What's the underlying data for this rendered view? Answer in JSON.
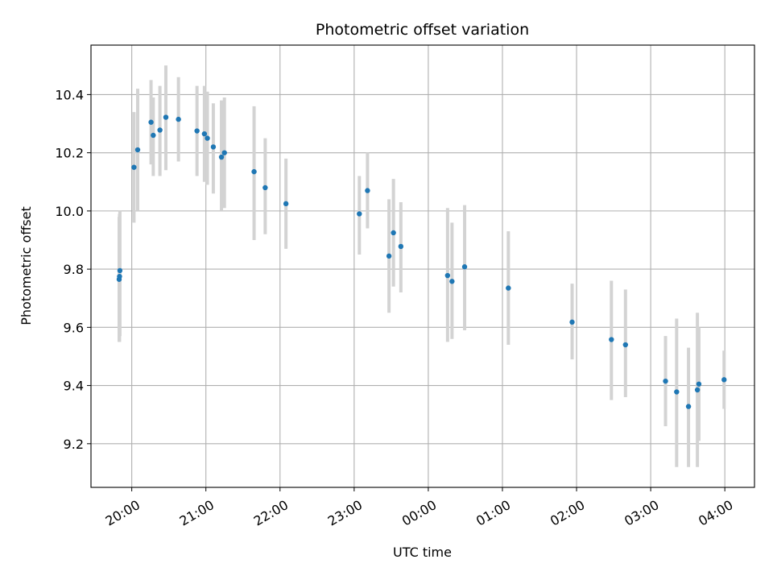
{
  "chart_data": {
    "type": "scatter",
    "title": "Photometric offset variation",
    "xlabel": "UTC time",
    "ylabel": "Photometric offset",
    "x_unit": "hours after 20:00 UTC, wrapping past midnight",
    "xlim": [
      -0.55,
      8.4
    ],
    "ylim": [
      9.05,
      10.57
    ],
    "grid": true,
    "x_ticks": [
      {
        "value": 0,
        "label": "20:00"
      },
      {
        "value": 1,
        "label": "21:00"
      },
      {
        "value": 2,
        "label": "22:00"
      },
      {
        "value": 3,
        "label": "23:00"
      },
      {
        "value": 4,
        "label": "00:00"
      },
      {
        "value": 5,
        "label": "01:00"
      },
      {
        "value": 6,
        "label": "02:00"
      },
      {
        "value": 7,
        "label": "03:00"
      },
      {
        "value": 8,
        "label": "04:00"
      }
    ],
    "y_ticks": [
      {
        "value": 9.2,
        "label": "9.2"
      },
      {
        "value": 9.4,
        "label": "9.4"
      },
      {
        "value": 9.6,
        "label": "9.6"
      },
      {
        "value": 9.8,
        "label": "9.8"
      },
      {
        "value": 10.0,
        "label": "10.0"
      },
      {
        "value": 10.2,
        "label": "10.2"
      },
      {
        "value": 10.4,
        "label": "10.4"
      }
    ],
    "marker_color": "#1f77b4",
    "errorbar_color": "#d3d3d3",
    "points": [
      {
        "x": -0.16,
        "y": 9.795,
        "lo": 9.57,
        "hi": 10.0
      },
      {
        "x": -0.165,
        "y": 9.775,
        "lo": 9.55,
        "hi": 9.99
      },
      {
        "x": -0.17,
        "y": 9.765,
        "lo": 9.55,
        "hi": 9.98
      },
      {
        "x": 0.03,
        "y": 10.15,
        "lo": 9.96,
        "hi": 10.34
      },
      {
        "x": 0.08,
        "y": 10.21,
        "lo": 10.0,
        "hi": 10.42
      },
      {
        "x": 0.26,
        "y": 10.305,
        "lo": 10.16,
        "hi": 10.45
      },
      {
        "x": 0.29,
        "y": 10.26,
        "lo": 10.12,
        "hi": 10.39
      },
      {
        "x": 0.38,
        "y": 10.278,
        "lo": 10.12,
        "hi": 10.43
      },
      {
        "x": 0.46,
        "y": 10.322,
        "lo": 10.14,
        "hi": 10.5
      },
      {
        "x": 0.63,
        "y": 10.315,
        "lo": 10.17,
        "hi": 10.46
      },
      {
        "x": 0.88,
        "y": 10.275,
        "lo": 10.12,
        "hi": 10.43
      },
      {
        "x": 0.98,
        "y": 10.265,
        "lo": 10.1,
        "hi": 10.43
      },
      {
        "x": 1.02,
        "y": 10.25,
        "lo": 10.09,
        "hi": 10.41
      },
      {
        "x": 1.1,
        "y": 10.22,
        "lo": 10.06,
        "hi": 10.37
      },
      {
        "x": 1.21,
        "y": 10.185,
        "lo": 10.0,
        "hi": 10.38
      },
      {
        "x": 1.25,
        "y": 10.2,
        "lo": 10.01,
        "hi": 10.39
      },
      {
        "x": 1.65,
        "y": 10.135,
        "lo": 9.9,
        "hi": 10.36
      },
      {
        "x": 1.8,
        "y": 10.08,
        "lo": 9.92,
        "hi": 10.25
      },
      {
        "x": 2.08,
        "y": 10.025,
        "lo": 9.87,
        "hi": 10.18
      },
      {
        "x": 3.07,
        "y": 9.99,
        "lo": 9.85,
        "hi": 10.12
      },
      {
        "x": 3.18,
        "y": 10.07,
        "lo": 9.94,
        "hi": 10.2
      },
      {
        "x": 3.47,
        "y": 9.845,
        "lo": 9.65,
        "hi": 10.04
      },
      {
        "x": 3.53,
        "y": 9.925,
        "lo": 9.74,
        "hi": 10.11
      },
      {
        "x": 3.63,
        "y": 9.878,
        "lo": 9.72,
        "hi": 10.03
      },
      {
        "x": 4.26,
        "y": 9.778,
        "lo": 9.55,
        "hi": 10.01
      },
      {
        "x": 4.32,
        "y": 9.758,
        "lo": 9.56,
        "hi": 9.96
      },
      {
        "x": 4.49,
        "y": 9.808,
        "lo": 9.59,
        "hi": 10.02
      },
      {
        "x": 5.08,
        "y": 9.735,
        "lo": 9.54,
        "hi": 9.93
      },
      {
        "x": 5.94,
        "y": 9.618,
        "lo": 9.49,
        "hi": 9.75
      },
      {
        "x": 6.47,
        "y": 9.558,
        "lo": 9.35,
        "hi": 9.76
      },
      {
        "x": 6.66,
        "y": 9.54,
        "lo": 9.36,
        "hi": 9.73
      },
      {
        "x": 7.2,
        "y": 9.415,
        "lo": 9.26,
        "hi": 9.57
      },
      {
        "x": 7.35,
        "y": 9.378,
        "lo": 9.12,
        "hi": 9.63
      },
      {
        "x": 7.51,
        "y": 9.328,
        "lo": 9.12,
        "hi": 9.53
      },
      {
        "x": 7.63,
        "y": 9.385,
        "lo": 9.12,
        "hi": 9.65
      },
      {
        "x": 7.65,
        "y": 9.405,
        "lo": 9.21,
        "hi": 9.6
      },
      {
        "x": 7.99,
        "y": 9.42,
        "lo": 9.32,
        "hi": 9.52
      }
    ]
  }
}
